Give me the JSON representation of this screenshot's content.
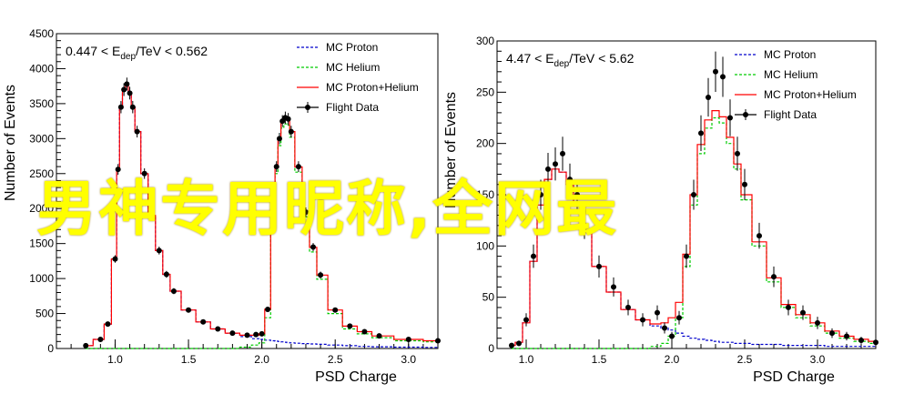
{
  "overlay_text": "男神专用昵称,全网最",
  "chart_data": [
    {
      "type": "line",
      "title": "",
      "annotation_main": "0.447 < E",
      "annotation_sub": "dep",
      "annotation_tail": "/TeV < 0.562",
      "xlabel": "PSD Charge",
      "ylabel": "Number of Events",
      "xlim": [
        0.6,
        3.2
      ],
      "ylim": [
        0,
        4500
      ],
      "xticks": [
        1.0,
        1.5,
        2.0,
        2.5,
        3.0
      ],
      "xtick_labels": [
        "1.0",
        "1.5",
        "2.0",
        "2.5",
        "3.0"
      ],
      "yticks": [
        0,
        500,
        1000,
        1500,
        2000,
        2500,
        3000,
        3500,
        4000,
        4500
      ],
      "ytick_labels": [
        "0",
        "500",
        "1000",
        "1500",
        "2000",
        "2500",
        "3000",
        "3500",
        "4000",
        "4500"
      ],
      "legend_position": "top-right",
      "grid": false,
      "x": [
        0.8,
        0.9,
        0.95,
        1.0,
        1.02,
        1.04,
        1.06,
        1.08,
        1.1,
        1.12,
        1.15,
        1.2,
        1.25,
        1.3,
        1.35,
        1.4,
        1.5,
        1.6,
        1.7,
        1.8,
        1.9,
        1.96,
        2.0,
        2.04,
        2.08,
        2.1,
        2.12,
        2.14,
        2.16,
        2.18,
        2.2,
        2.25,
        2.3,
        2.35,
        2.4,
        2.5,
        2.6,
        2.7,
        2.8,
        3.0,
        3.2
      ],
      "series": [
        {
          "name": "Flight Data",
          "values": [
            40,
            130,
            350,
            1280,
            2560,
            3450,
            3700,
            3780,
            3650,
            3450,
            3100,
            2500,
            1900,
            1400,
            1060,
            820,
            550,
            380,
            280,
            220,
            190,
            200,
            210,
            560,
            2000,
            2600,
            3000,
            3250,
            3300,
            3280,
            3100,
            2600,
            1950,
            1450,
            1050,
            550,
            320,
            240,
            180,
            130,
            110
          ]
        },
        {
          "name": "MC Proton",
          "values": [
            40,
            130,
            350,
            1280,
            2560,
            3450,
            3700,
            3780,
            3650,
            3450,
            3100,
            2500,
            1900,
            1400,
            1060,
            820,
            550,
            380,
            280,
            220,
            170,
            140,
            130,
            120,
            110,
            105,
            100,
            95,
            90,
            85,
            80,
            75,
            70,
            65,
            60,
            50,
            40,
            30,
            25,
            20,
            15
          ]
        },
        {
          "name": "MC Helium",
          "values": [
            0,
            0,
            0,
            0,
            0,
            0,
            0,
            0,
            0,
            0,
            0,
            0,
            0,
            0,
            0,
            0,
            0,
            0,
            0,
            0,
            20,
            50,
            80,
            440,
            1890,
            2500,
            2900,
            3150,
            3210,
            3190,
            3020,
            2520,
            1880,
            1380,
            990,
            500,
            280,
            210,
            155,
            110,
            95
          ]
        },
        {
          "name": "MC Proton+Helium",
          "values": [
            40,
            130,
            350,
            1280,
            2560,
            3450,
            3700,
            3780,
            3650,
            3450,
            3100,
            2500,
            1900,
            1400,
            1060,
            820,
            550,
            380,
            280,
            220,
            190,
            190,
            210,
            560,
            2000,
            2605,
            3000,
            3245,
            3300,
            3275,
            3100,
            2595,
            1950,
            1445,
            1050,
            550,
            320,
            240,
            180,
            130,
            110
          ]
        }
      ]
    },
    {
      "type": "line",
      "title": "",
      "annotation_main": "4.47 < E",
      "annotation_sub": "dep",
      "annotation_tail": "/TeV < 5.62",
      "xlabel": "PSD Charge",
      "ylabel": "Number of Events",
      "xlim": [
        0.8,
        3.4
      ],
      "ylim": [
        0,
        300
      ],
      "xticks": [
        1.0,
        1.5,
        2.0,
        2.5,
        3.0
      ],
      "xtick_labels": [
        "1.0",
        "1.5",
        "2.0",
        "2.5",
        "3.0"
      ],
      "yticks": [
        0,
        50,
        100,
        150,
        200,
        250,
        300
      ],
      "ytick_labels": [
        "0",
        "50",
        "100",
        "150",
        "200",
        "250",
        "300"
      ],
      "legend_position": "top-right",
      "grid": false,
      "x": [
        0.9,
        0.95,
        1.0,
        1.05,
        1.1,
        1.15,
        1.2,
        1.25,
        1.3,
        1.35,
        1.4,
        1.5,
        1.6,
        1.7,
        1.8,
        1.9,
        1.95,
        2.0,
        2.05,
        2.1,
        2.15,
        2.2,
        2.25,
        2.3,
        2.35,
        2.4,
        2.45,
        2.5,
        2.6,
        2.7,
        2.8,
        2.9,
        3.0,
        3.1,
        3.2,
        3.3,
        3.4
      ],
      "series": [
        {
          "name": "Flight Data",
          "values": [
            3,
            5,
            28,
            90,
            150,
            175,
            180,
            190,
            165,
            150,
            120,
            80,
            60,
            40,
            28,
            35,
            20,
            12,
            30,
            90,
            150,
            210,
            245,
            270,
            265,
            225,
            190,
            160,
            110,
            70,
            40,
            35,
            25,
            15,
            12,
            8,
            6
          ]
        },
        {
          "name": "MC Proton",
          "values": [
            3,
            6,
            25,
            85,
            140,
            165,
            175,
            172,
            160,
            140,
            115,
            80,
            55,
            38,
            28,
            22,
            20,
            18,
            15,
            12,
            10,
            9,
            8,
            7,
            6,
            6,
            5,
            5,
            4,
            4,
            3,
            3,
            3,
            2,
            2,
            2,
            2
          ]
        },
        {
          "name": "MC Helium",
          "values": [
            0,
            0,
            0,
            0,
            0,
            0,
            0,
            0,
            0,
            0,
            0,
            0,
            0,
            0,
            0,
            2,
            5,
            12,
            30,
            80,
            140,
            190,
            215,
            225,
            220,
            200,
            175,
            145,
            100,
            65,
            40,
            30,
            22,
            15,
            10,
            7,
            5
          ]
        },
        {
          "name": "MC Proton+Helium",
          "values": [
            3,
            6,
            25,
            85,
            140,
            165,
            175,
            172,
            160,
            140,
            115,
            80,
            55,
            38,
            28,
            24,
            25,
            30,
            45,
            92,
            150,
            199,
            223,
            232,
            226,
            206,
            180,
            150,
            104,
            69,
            43,
            33,
            25,
            17,
            12,
            9,
            7
          ]
        }
      ]
    }
  ]
}
